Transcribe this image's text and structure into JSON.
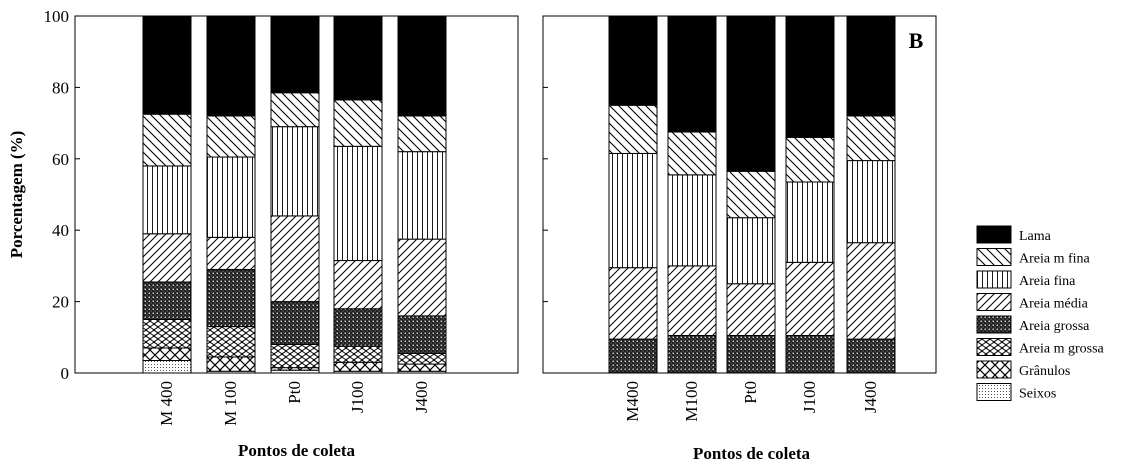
{
  "colors": {
    "ink": "#000000",
    "paper": "#ffffff",
    "fine_dot": "#555555"
  },
  "legend": {
    "entries": [
      {
        "label": "Lama",
        "pattern": "solid"
      },
      {
        "label": "Areia m fina",
        "pattern": "backdiag"
      },
      {
        "label": "Areia fina",
        "pattern": "vertical"
      },
      {
        "label": "Areia média",
        "pattern": "diag"
      },
      {
        "label": "Areia grossa",
        "pattern": "densecross"
      },
      {
        "label": "Areia m grossa",
        "pattern": "wave"
      },
      {
        "label": "Grânulos",
        "pattern": "crosshatch"
      },
      {
        "label": "Seixos",
        "pattern": "finedot"
      }
    ]
  },
  "chart_data": [
    {
      "type": "bar",
      "stacked": true,
      "panel_label": "",
      "categories": [
        "M 400",
        "M 100",
        "Pt0",
        "J100",
        "J400"
      ],
      "xlabel": "Pontos de coleta",
      "ylabel": "Porcentagem  (%)",
      "ylim": [
        0,
        100
      ],
      "yticks": [
        0,
        20,
        40,
        60,
        80,
        100
      ],
      "grid": false,
      "series": [
        {
          "name": "Seixos",
          "values": [
            3.5,
            0.5,
            0.8,
            0.5,
            0.5
          ]
        },
        {
          "name": "Grânulos",
          "values": [
            3.5,
            4.0,
            0.7,
            2.5,
            2.0
          ]
        },
        {
          "name": "Areia m grossa",
          "values": [
            8.0,
            8.5,
            6.5,
            4.5,
            3.0
          ]
        },
        {
          "name": "Areia grossa",
          "values": [
            10.5,
            16.0,
            12.0,
            10.5,
            10.5
          ]
        },
        {
          "name": "Areia média",
          "values": [
            13.5,
            9.0,
            24.0,
            13.5,
            21.5
          ]
        },
        {
          "name": "Areia fina",
          "values": [
            19.0,
            22.5,
            25.0,
            32.0,
            24.5
          ]
        },
        {
          "name": "Areia m fina",
          "values": [
            14.5,
            11.5,
            9.5,
            13.0,
            10.0
          ]
        },
        {
          "name": "Lama",
          "values": [
            27.5,
            28.0,
            21.5,
            23.5,
            28.0
          ]
        }
      ]
    },
    {
      "type": "bar",
      "stacked": true,
      "panel_label": "B",
      "categories": [
        "M400",
        "M100",
        "Pt0",
        "J100",
        "J400"
      ],
      "xlabel": "Pontos de coleta",
      "ylabel": "",
      "ylim": [
        0,
        100
      ],
      "yticks": [
        0,
        20,
        40,
        60,
        80,
        100
      ],
      "grid": false,
      "series": [
        {
          "name": "Seixos",
          "values": [
            0.0,
            0.0,
            0.0,
            0.0,
            0.0
          ]
        },
        {
          "name": "Grânulos",
          "values": [
            0.0,
            0.0,
            0.0,
            0.0,
            0.0
          ]
        },
        {
          "name": "Areia m grossa",
          "values": [
            0.0,
            0.0,
            0.0,
            0.0,
            0.0
          ]
        },
        {
          "name": "Areia grossa",
          "values": [
            9.5,
            10.5,
            10.5,
            10.5,
            9.5
          ]
        },
        {
          "name": "Areia média",
          "values": [
            20.0,
            19.5,
            14.5,
            20.5,
            27.0
          ]
        },
        {
          "name": "Areia fina",
          "values": [
            32.0,
            25.5,
            18.5,
            22.5,
            23.0
          ]
        },
        {
          "name": "Areia m fina",
          "values": [
            13.5,
            12.0,
            13.0,
            12.5,
            12.5
          ]
        },
        {
          "name": "Lama",
          "values": [
            25.0,
            32.5,
            43.5,
            34.0,
            28.0
          ]
        }
      ]
    }
  ]
}
